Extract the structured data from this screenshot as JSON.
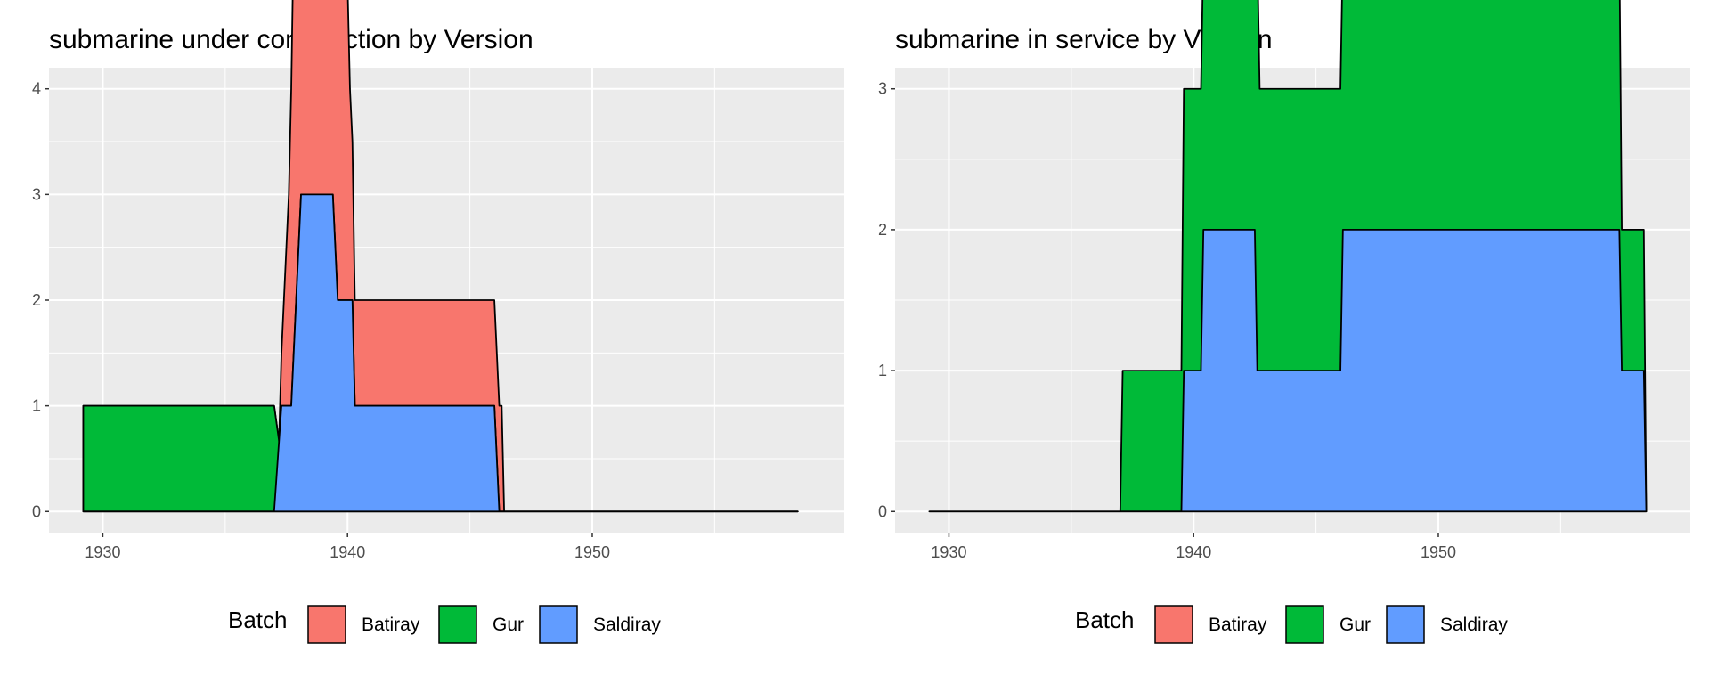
{
  "chart_data": [
    {
      "type": "area",
      "title": "submarine under construction by Version",
      "xlabel": "",
      "ylabel": "",
      "xlim": [
        1927.8,
        1960.3
      ],
      "ylim": [
        -0.2,
        4.2
      ],
      "x_ticks": [
        1930,
        1940,
        1950
      ],
      "y_ticks": [
        0,
        1,
        2,
        3,
        4
      ],
      "legend": {
        "title": "Batch",
        "position": "bottom",
        "entries": [
          "Batiray",
          "Gur",
          "Saldiray"
        ]
      },
      "grid": true,
      "series": [
        {
          "name": "Batiray",
          "color": "#F8766D",
          "points": [
            [
              1929.2,
              0
            ],
            [
              1937.2,
              0
            ],
            [
              1937.4,
              1
            ],
            [
              1937.6,
              2
            ],
            [
              1937.8,
              4
            ],
            [
              1939.5,
              4
            ],
            [
              1940.0,
              3
            ],
            [
              1940.1,
              2
            ],
            [
              1940.3,
              1
            ],
            [
              1946.3,
              1
            ],
            [
              1946.4,
              0
            ],
            [
              1958.4,
              0
            ]
          ]
        },
        {
          "name": "Gur",
          "color": "#00BA38",
          "points": [
            [
              1929.2,
              1
            ],
            [
              1937.0,
              1
            ],
            [
              1937.2,
              0
            ],
            [
              1958.4,
              0
            ]
          ]
        },
        {
          "name": "Saldiray",
          "color": "#619CFF",
          "points": [
            [
              1929.2,
              0
            ],
            [
              1937.0,
              0
            ],
            [
              1937.3,
              1
            ],
            [
              1937.7,
              1
            ],
            [
              1938.1,
              3
            ],
            [
              1939.4,
              3
            ],
            [
              1939.6,
              2
            ],
            [
              1940.2,
              2
            ],
            [
              1940.3,
              1
            ],
            [
              1946.0,
              1
            ],
            [
              1946.2,
              0
            ],
            [
              1958.4,
              0
            ]
          ]
        }
      ]
    },
    {
      "type": "area",
      "title": "submarine in service by Version",
      "xlabel": "",
      "ylabel": "",
      "xlim": [
        1927.8,
        1960.3
      ],
      "ylim": [
        -0.15,
        3.15
      ],
      "x_ticks": [
        1930,
        1940,
        1950
      ],
      "y_ticks": [
        0,
        1,
        2,
        3
      ],
      "legend": {
        "title": "Batch",
        "position": "bottom",
        "entries": [
          "Batiray",
          "Gur",
          "Saldiray"
        ]
      },
      "grid": true,
      "series": [
        {
          "name": "Gur",
          "color": "#00BA38",
          "points": [
            [
              1929.2,
              0
            ],
            [
              1937.0,
              0
            ],
            [
              1937.1,
              1
            ],
            [
              1939.5,
              1
            ],
            [
              1939.6,
              2
            ],
            [
              1940.4,
              2
            ],
            [
              1940.5,
              3
            ],
            [
              1942.6,
              3
            ],
            [
              1942.7,
              2
            ],
            [
              1946.1,
              2
            ],
            [
              1946.2,
              3
            ],
            [
              1947.5,
              3
            ],
            [
              1947.6,
              2
            ],
            [
              1957.4,
              2
            ],
            [
              1957.5,
              1
            ],
            [
              1958.4,
              1
            ],
            [
              1958.5,
              0
            ]
          ]
        },
        {
          "name": "Saldiray",
          "color": "#619CFF",
          "points": [
            [
              1929.2,
              0
            ],
            [
              1939.5,
              0
            ],
            [
              1939.6,
              1
            ],
            [
              1940.3,
              1
            ],
            [
              1940.4,
              2
            ],
            [
              1942.5,
              2
            ],
            [
              1942.6,
              1
            ],
            [
              1946.0,
              1
            ],
            [
              1946.1,
              2
            ],
            [
              1957.4,
              2
            ],
            [
              1957.5,
              1
            ],
            [
              1958.4,
              1
            ],
            [
              1958.5,
              0
            ]
          ]
        }
      ]
    }
  ]
}
